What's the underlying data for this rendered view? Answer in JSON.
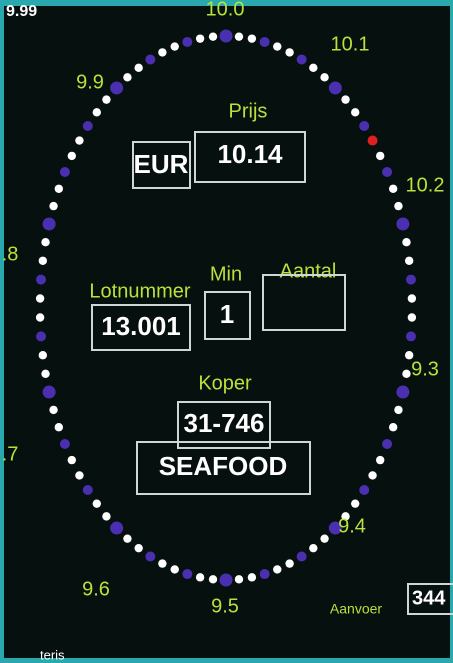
{
  "clock": {
    "labels": [
      "10.0",
      "10.1",
      "10.2",
      "9.3",
      "9.4",
      "9.5",
      "9.6",
      ".7",
      ".8",
      "9.9"
    ]
  },
  "header": {
    "partial": "9.99"
  },
  "price": {
    "label": "Prijs",
    "currency": "EUR",
    "value": "10.14"
  },
  "lot": {
    "label": "Lotnummer",
    "value": "13.001"
  },
  "min": {
    "label": "Min",
    "value": "1"
  },
  "amount": {
    "label": "Aantal"
  },
  "buyer": {
    "label": "Koper",
    "value": "31-746",
    "name": "SEAFOOD"
  },
  "supply": {
    "label": "Aanvoer",
    "value": "344"
  },
  "footer": {
    "partial": "teris"
  }
}
